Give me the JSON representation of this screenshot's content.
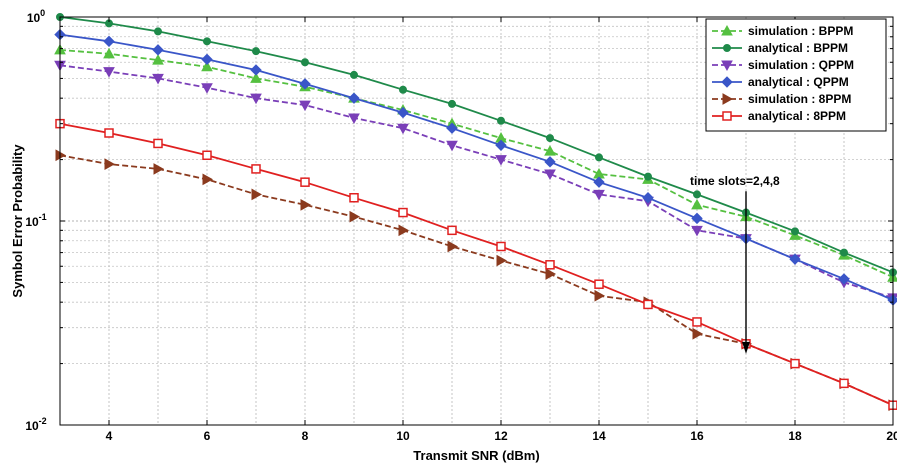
{
  "chart_data": {
    "type": "line",
    "xlabel": "Transmit SNR (dBm)",
    "ylabel": "Symbol Error Probability",
    "xlim": [
      3,
      20
    ],
    "ylim": [
      0.01,
      1
    ],
    "yscale": "log",
    "grid": true,
    "legend_position": "top-right",
    "x_ticks": [
      "4",
      "6",
      "8",
      "10",
      "12",
      "14",
      "16",
      "18",
      "20"
    ],
    "y_ticks": [
      {
        "value": 1,
        "base": "10",
        "exp": "0"
      },
      {
        "value": 0.1,
        "base": "10",
        "exp": "-1"
      },
      {
        "value": 0.01,
        "base": "10",
        "exp": "-2"
      }
    ],
    "x": [
      3,
      4,
      5,
      6,
      7,
      8,
      9,
      10,
      11,
      12,
      13,
      14,
      15,
      16,
      17,
      18,
      19,
      20
    ],
    "series": [
      {
        "name": "simulation : BPPM",
        "color": "#55c040",
        "dash": true,
        "marker": "triangle-up",
        "values": [
          0.69,
          0.66,
          0.615,
          0.57,
          0.5,
          0.455,
          0.4,
          0.35,
          0.3,
          0.255,
          0.22,
          0.17,
          0.16,
          0.12,
          0.105,
          0.085,
          0.068,
          0.053
        ]
      },
      {
        "name": "analytical : BPPM",
        "color": "#1f8a4a",
        "dash": false,
        "marker": "circle",
        "values": [
          1.0,
          0.93,
          0.85,
          0.76,
          0.68,
          0.6,
          0.52,
          0.44,
          0.375,
          0.31,
          0.255,
          0.205,
          0.165,
          0.135,
          0.11,
          0.089,
          0.07,
          0.056
        ]
      },
      {
        "name": "simulation : QPPM",
        "color": "#7a3fb8",
        "dash": true,
        "marker": "triangle-down",
        "values": [
          0.58,
          0.54,
          0.5,
          0.45,
          0.4,
          0.37,
          0.32,
          0.285,
          0.235,
          0.2,
          0.17,
          0.135,
          0.125,
          0.09,
          0.082,
          0.065,
          0.05,
          0.042
        ]
      },
      {
        "name": "analytical : QPPM",
        "color": "#3a56c8",
        "dash": false,
        "marker": "diamond",
        "values": [
          0.82,
          0.76,
          0.69,
          0.62,
          0.55,
          0.47,
          0.4,
          0.34,
          0.285,
          0.235,
          0.195,
          0.155,
          0.13,
          0.103,
          0.082,
          0.065,
          0.052,
          0.041
        ]
      },
      {
        "name": "simulation : 8PPM",
        "color": "#8b3a1e",
        "dash": true,
        "marker": "triangle-right",
        "values": [
          0.21,
          0.19,
          0.18,
          0.16,
          0.135,
          0.12,
          0.105,
          0.09,
          0.075,
          0.064,
          0.055,
          0.043,
          0.04,
          0.028,
          0.025,
          0.02,
          0.016,
          0.0125
        ]
      },
      {
        "name": "analytical : 8PPM",
        "color": "#e02020",
        "dash": false,
        "marker": "square",
        "values": [
          0.3,
          0.27,
          0.24,
          0.21,
          0.18,
          0.155,
          0.13,
          0.11,
          0.09,
          0.075,
          0.061,
          0.049,
          0.039,
          0.032,
          0.025,
          0.02,
          0.016,
          0.0125
        ]
      }
    ],
    "annotation": {
      "text": "time slots=2,4,8",
      "x": 17,
      "y_start": 0.14,
      "y_end": 0.025
    }
  }
}
